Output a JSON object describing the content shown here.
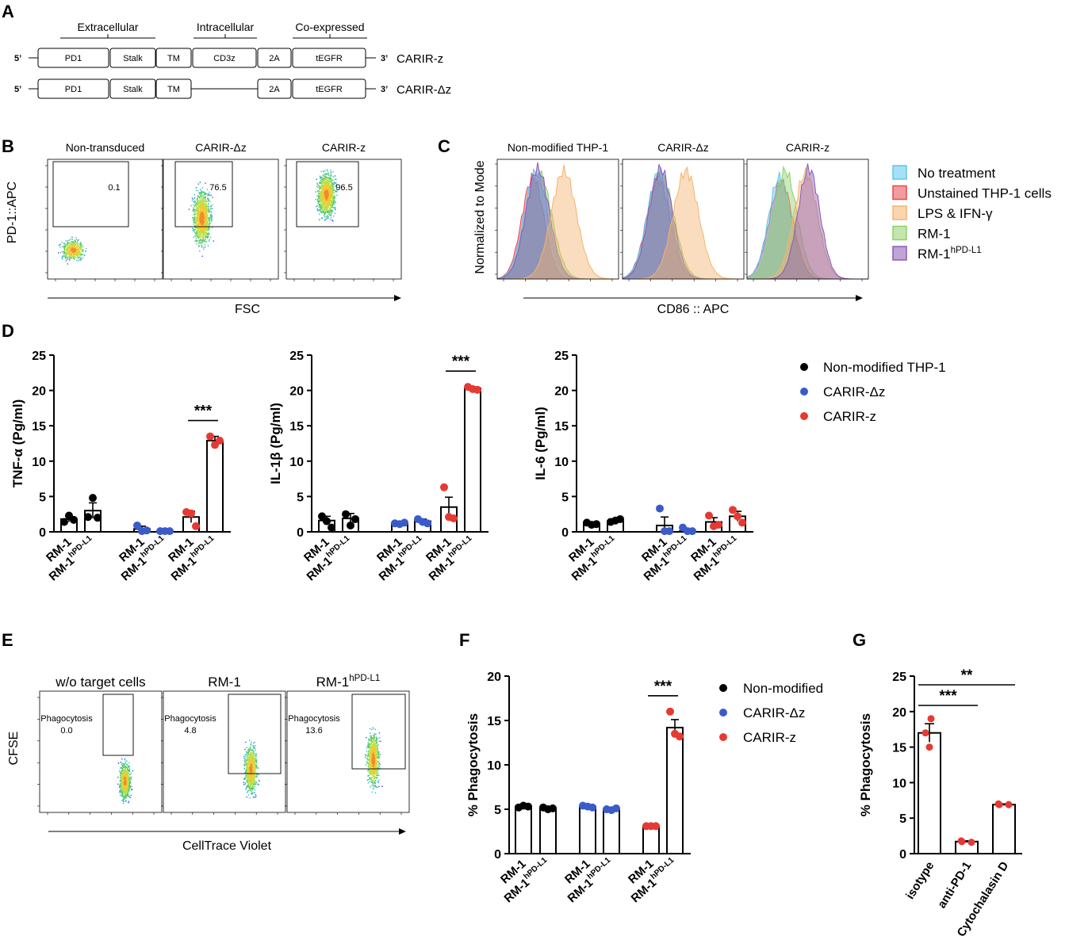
{
  "panel_letters": {
    "A": "A",
    "B": "B",
    "C": "C",
    "D": "D",
    "E": "E",
    "F": "F",
    "G": "G"
  },
  "panelA": {
    "groups": [
      "Extracellular",
      "Intracellular",
      "Co-expressed"
    ],
    "prime5": "5’",
    "prime3": "3’",
    "constructs": [
      {
        "name": "CARIR-z",
        "boxes": [
          "PD1",
          "Stalk",
          "TM",
          "CD3z",
          "2A",
          "tEGFR"
        ]
      },
      {
        "name": "CARIR-Δz",
        "boxes": [
          "PD1",
          "Stalk",
          "TM",
          "2A",
          "tEGFR"
        ]
      }
    ]
  },
  "panelB": {
    "plots": [
      {
        "title": "Non-transduced",
        "gate_value": "0.1"
      },
      {
        "title": "CARIR-Δz",
        "gate_value": "76.5"
      },
      {
        "title": "CARIR-z",
        "gate_value": "96.5"
      }
    ],
    "ylabel": "PD-1::APC",
    "xlabel": "FSC"
  },
  "panelC": {
    "plots": [
      "Non-modified THP-1",
      "CARIR-Δz",
      "CARIR-z"
    ],
    "ylabel": "Normalized to Mode",
    "xlabel": "CD86 :: APC",
    "legend": [
      {
        "label": "No treatment",
        "color": "#5bc6ee"
      },
      {
        "label": "Unstained THP-1 cells",
        "color": "#e94a4f"
      },
      {
        "label": "LPS & IFN-γ",
        "color": "#f5b36e"
      },
      {
        "label": "RM-1",
        "color": "#8fd16a"
      },
      {
        "label": "RM-1",
        "sup": "hPD-L1",
        "color": "#8a5bb5"
      }
    ]
  },
  "panelD_legend": [
    {
      "label": "Non-modified THP-1",
      "color": "#000000"
    },
    {
      "label": "CARIR-Δz",
      "color": "#3b5bc9"
    },
    {
      "label": "CARIR-z",
      "color": "#e53a32"
    }
  ],
  "panelE": {
    "plots": [
      {
        "title": "w/o target cells",
        "sup": "",
        "gate_label": "Phagocytosis",
        "gate_value": "0.0"
      },
      {
        "title": "RM-1",
        "sup": "",
        "gate_label": "Phagocytosis",
        "gate_value": "4.8"
      },
      {
        "title": "RM-1",
        "sup": "hPD-L1",
        "gate_label": "Phagocytosis",
        "gate_value": "13.6"
      }
    ],
    "ylabel": "CFSE",
    "xlabel": "CellTrace Violet"
  },
  "panelF_legend": [
    {
      "label": "Non-modified",
      "color": "#000000"
    },
    {
      "label": "CARIR-Δz",
      "color": "#3b5bc9"
    },
    {
      "label": "CARIR-z",
      "color": "#e53a32"
    }
  ],
  "chart_data": [
    {
      "id": "D1",
      "type": "bar",
      "ylabel": "TNF-α (Pg/ml)",
      "ylim": [
        0,
        25
      ],
      "ticks": [
        0,
        5,
        10,
        15,
        20,
        25
      ],
      "categories": [
        {
          "label": "RM-1",
          "sup": ""
        },
        {
          "label": "RM-1",
          "sup": "hPD-L1"
        }
      ],
      "groups": [
        "Non-modified THP-1",
        "CARIR-Δz",
        "CARIR-z"
      ],
      "means": [
        [
          1.8,
          3.0
        ],
        [
          0.4,
          0.1
        ],
        [
          2.1,
          12.9
        ]
      ],
      "errors": [
        [
          0.4,
          1.1
        ],
        [
          0.4,
          0.1
        ],
        [
          0.8,
          0.6
        ]
      ],
      "points": [
        [
          [
            1.4,
            2.3,
            1.7
          ],
          [
            2.1,
            4.8,
            2.0
          ]
        ],
        [
          [
            0.9,
            0.1,
            0.2
          ],
          [
            0.1,
            0.1,
            0.1
          ]
        ],
        [
          [
            2.8,
            2.6,
            0.8
          ],
          [
            13.5,
            12.3,
            12.9
          ]
        ]
      ],
      "significance": [
        {
          "group": 2,
          "label": "***"
        }
      ]
    },
    {
      "id": "D2",
      "type": "bar",
      "ylabel": "IL-1β (Pg/ml)",
      "ylim": [
        0,
        25
      ],
      "ticks": [
        0,
        5,
        10,
        15,
        20,
        25
      ],
      "categories": [
        {
          "label": "RM-1",
          "sup": ""
        },
        {
          "label": "RM-1",
          "sup": "hPD-L1"
        }
      ],
      "groups": [
        "Non-modified THP-1",
        "CARIR-Δz",
        "CARIR-z"
      ],
      "means": [
        [
          1.6,
          1.9
        ],
        [
          1.2,
          1.5
        ],
        [
          3.5,
          20.3
        ]
      ],
      "errors": [
        [
          0.6,
          0.7
        ],
        [
          0.2,
          0.3
        ],
        [
          1.4,
          0.2
        ]
      ],
      "points": [
        [
          [
            2.2,
            1.5,
            0.6
          ],
          [
            2.5,
            0.9,
            1.8
          ]
        ],
        [
          [
            1.2,
            1.1,
            1.3
          ],
          [
            1.8,
            1.4,
            1.2
          ]
        ],
        [
          [
            6.3,
            2.1,
            1.9
          ],
          [
            20.5,
            20.2,
            20.1
          ]
        ]
      ],
      "significance": [
        {
          "group": 2,
          "label": "***"
        }
      ]
    },
    {
      "id": "D3",
      "type": "bar",
      "ylabel": "IL-6 (Pg/ml)",
      "ylim": [
        0,
        25
      ],
      "ticks": [
        0,
        5,
        10,
        15,
        20,
        25
      ],
      "categories": [
        {
          "label": "RM-1",
          "sup": ""
        },
        {
          "label": "RM-1",
          "sup": "hPD-L1"
        }
      ],
      "groups": [
        "Non-modified THP-1",
        "CARIR-Δz",
        "CARIR-z"
      ],
      "means": [
        [
          1.2,
          1.5
        ],
        [
          0.9,
          0.1
        ],
        [
          1.4,
          2.2
        ]
      ],
      "errors": [
        [
          0.2,
          0.3
        ],
        [
          1.2,
          0.1
        ],
        [
          0.6,
          0.7
        ]
      ],
      "points": [
        [
          [
            1.3,
            1.0,
            1.1
          ],
          [
            1.4,
            1.6,
            1.8
          ]
        ],
        [
          [
            3.3,
            0.1,
            0.1
          ],
          [
            0.6,
            0.1,
            0.1
          ]
        ],
        [
          [
            2.3,
            0.8,
            1.0
          ],
          [
            3.1,
            2.2,
            1.3
          ]
        ]
      ],
      "significance": []
    },
    {
      "id": "F",
      "type": "bar",
      "ylabel": "% Phagocytosis",
      "ylim": [
        0,
        20
      ],
      "ticks": [
        0,
        5,
        10,
        15,
        20
      ],
      "categories": [
        {
          "label": "RM-1",
          "sup": ""
        },
        {
          "label": "RM-1",
          "sup": "hPD-L1"
        }
      ],
      "groups": [
        "Non-modified",
        "CARIR-Δz",
        "CARIR-z"
      ],
      "means": [
        [
          5.3,
          5.1
        ],
        [
          5.3,
          5.0
        ],
        [
          3.1,
          14.2
        ]
      ],
      "errors": [
        [
          0.1,
          0.1
        ],
        [
          0.1,
          0.1
        ],
        [
          0.05,
          0.9
        ]
      ],
      "points": [
        [
          [
            5.2,
            5.4,
            5.3
          ],
          [
            5.2,
            5.0,
            5.1
          ]
        ],
        [
          [
            5.4,
            5.3,
            5.2
          ],
          [
            5.0,
            4.9,
            5.1
          ]
        ],
        [
          [
            3.1,
            3.1,
            3.1
          ],
          [
            16.0,
            13.5,
            13.2
          ]
        ]
      ],
      "significance": [
        {
          "group": 2,
          "label": "***"
        }
      ]
    },
    {
      "id": "G",
      "type": "bar",
      "ylabel": "% Phagocytosis",
      "ylim": [
        0,
        25
      ],
      "ticks": [
        0,
        5,
        10,
        15,
        20,
        25
      ],
      "categories": [
        "isotype",
        "anti-PD-1",
        "Cytochalasin D"
      ],
      "means": [
        17.0,
        1.7,
        6.9
      ],
      "errors": [
        1.3,
        0.1,
        0.1
      ],
      "points": [
        [
          19.0,
          17.0,
          15.0
        ],
        [
          1.8,
          1.7,
          1.6
        ],
        [
          7.0,
          6.9,
          6.9
        ]
      ],
      "comparisons": [
        {
          "from": 0,
          "to": 1,
          "label": "***"
        },
        {
          "from": 0,
          "to": 2,
          "label": "**"
        }
      ]
    }
  ]
}
